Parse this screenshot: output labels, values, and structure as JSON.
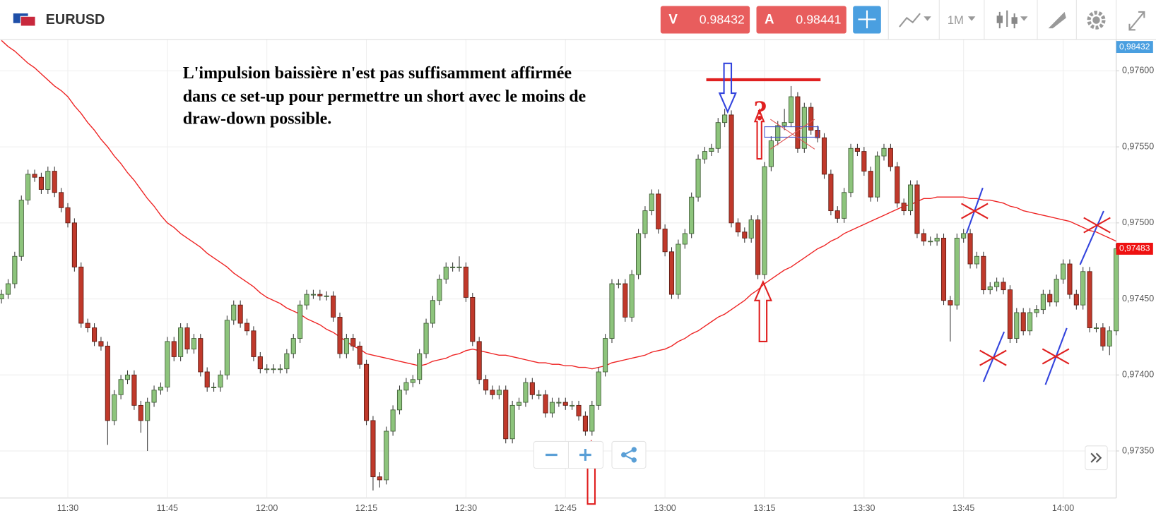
{
  "header": {
    "symbol": "EURUSD",
    "sell_label": "V",
    "sell_price": "0.98432",
    "buy_label": "A",
    "buy_price": "0.98441",
    "timeframe": "1M",
    "ask_tag": "0,98432"
  },
  "chart_data": {
    "type": "candlestick",
    "annotation": [
      "L'impulsion baissière n'est pas suffisamment affirmée",
      "dans ce set-up pour permettre un short avec le moins de",
      "draw-down possible."
    ],
    "question_mark": "?",
    "ylim": [
      0.9732,
      0.97621
    ],
    "yticks": [
      {
        "value": 0.9735,
        "label": "0,97350"
      },
      {
        "value": 0.974,
        "label": "0,97400"
      },
      {
        "value": 0.9745,
        "label": "0,97450"
      },
      {
        "value": 0.975,
        "label": "0,97500"
      },
      {
        "value": 0.9755,
        "label": "0,97550"
      },
      {
        "value": 0.976,
        "label": "0,97600"
      }
    ],
    "grid": true,
    "up_color": "#8dc47c",
    "down_color": "#c0392b",
    "last_price": {
      "value": 0.97483,
      "label": "0,97483"
    },
    "categories": [
      null,
      null,
      null,
      null,
      null,
      null,
      null,
      null,
      null,
      null,
      "11:30",
      null,
      null,
      null,
      null,
      null,
      null,
      null,
      null,
      null,
      null,
      null,
      null,
      null,
      null,
      "11:45",
      null,
      null,
      null,
      null,
      null,
      null,
      null,
      null,
      null,
      null,
      null,
      null,
      null,
      null,
      "12:00",
      null,
      null,
      null,
      null,
      null,
      null,
      null,
      null,
      null,
      null,
      null,
      null,
      null,
      null,
      "12:15",
      null,
      null,
      null,
      null,
      null,
      null,
      null,
      null,
      null,
      null,
      null,
      null,
      null,
      null,
      "12:30",
      null,
      null,
      null,
      null,
      null,
      null,
      null,
      null,
      null,
      null,
      null,
      null,
      null,
      null,
      "12:45",
      null,
      null,
      null,
      null,
      null,
      null,
      null,
      null,
      null,
      null,
      null,
      null,
      null,
      null,
      "13:00",
      null,
      null,
      null,
      null,
      null,
      null,
      null,
      null,
      null,
      null,
      null,
      null,
      null,
      null,
      "13:15",
      null,
      null,
      null,
      null,
      null,
      null,
      null,
      null,
      null,
      null,
      null,
      null,
      null,
      null,
      "13:30",
      null,
      null,
      null,
      null,
      null,
      null,
      null,
      null,
      null,
      null,
      null,
      null,
      null,
      null,
      "13:45",
      null,
      null,
      null,
      null,
      null,
      null,
      null,
      null,
      null,
      null,
      null,
      null,
      null,
      null,
      "14:00",
      null,
      null,
      null,
      null,
      null,
      null,
      null,
      null
    ],
    "open": [
      0.9745,
      0.97453,
      0.9746,
      0.97478,
      0.97515,
      0.97532,
      0.9753,
      0.97522,
      0.97534,
      0.9752,
      0.9751,
      0.975,
      0.97471,
      0.97434,
      0.97431,
      0.97422,
      0.97419,
      0.9737,
      0.97387,
      0.97397,
      0.974,
      0.9738,
      0.9737,
      0.97382,
      0.9739,
      0.97392,
      0.97422,
      0.97412,
      0.97431,
      0.97417,
      0.97424,
      0.97402,
      0.97392,
      0.97392,
      0.974,
      0.97436,
      0.97446,
      0.97434,
      0.97429,
      0.97412,
      0.97404,
      0.97404,
      0.97404,
      0.97404,
      0.97414,
      0.97424,
      0.97446,
      0.97453,
      0.97453,
      0.97452,
      0.97452,
      0.97438,
      0.97414,
      0.97424,
      0.97419,
      0.97407,
      0.9737,
      0.97333,
      0.97331,
      0.97363,
      0.97377,
      0.9739,
      0.97395,
      0.97397,
      0.97414,
      0.97434,
      0.97449,
      0.97463,
      0.97471,
      0.97471,
      0.97471,
      0.97451,
      0.97422,
      0.97397,
      0.9739,
      0.97387,
      0.9739,
      0.97358,
      0.9738,
      0.97382,
      0.97395,
      0.97387,
      0.97387,
      0.97375,
      0.97382,
      0.97382,
      0.9738,
      0.9738,
      0.97373,
      0.97363,
      0.9738,
      0.97402,
      0.97424,
      0.9746,
      0.9746,
      0.97438,
      0.97466,
      0.97493,
      0.97508,
      0.97519,
      0.97496,
      0.97481,
      0.97453,
      0.97486,
      0.97493,
      0.97517,
      0.97542,
      0.97547,
      0.97549,
      0.97566,
      0.97571,
      0.975,
      0.97494,
      0.9749,
      0.97502,
      0.97466,
      0.97537,
      0.97554,
      0.97564,
      0.97566,
      0.97583,
      0.97549,
      0.97576,
      0.97561,
      0.97556,
      0.97532,
      0.97508,
      0.97503,
      0.9752,
      0.97549,
      0.97547,
      0.97534,
      0.97517,
      0.97544,
      0.97549,
      0.97537,
      0.97513,
      0.97508,
      0.97525,
      0.97493,
      0.97488,
      0.97488,
      0.9749,
      0.97449,
      0.97446,
      0.9749,
      0.97493,
      0.97473,
      0.97478,
      0.97456,
      0.97458,
      0.97461,
      0.97456,
      0.97424,
      0.97441,
      0.97429,
      0.97441,
      0.97443,
      0.97453,
      0.97448,
      0.97463,
      0.97473,
      0.97453,
      0.97446,
      0.97468,
      0.97431,
      0.97431,
      0.97419,
      0.97429
    ],
    "high": [
      0.97456,
      0.97463,
      0.97481,
      0.97518,
      0.97535,
      0.97535,
      0.97533,
      0.97537,
      0.97537,
      0.97523,
      0.97513,
      0.97503,
      0.97474,
      0.97437,
      0.97434,
      0.97425,
      0.97422,
      0.9739,
      0.974,
      0.97403,
      0.97403,
      0.97383,
      0.97385,
      0.97393,
      0.97395,
      0.97425,
      0.97425,
      0.97434,
      0.97434,
      0.97427,
      0.97427,
      0.97405,
      0.97395,
      0.97403,
      0.97439,
      0.97449,
      0.97449,
      0.97437,
      0.97432,
      0.97415,
      0.97407,
      0.97407,
      0.97407,
      0.97417,
      0.97427,
      0.97449,
      0.97456,
      0.97456,
      0.97456,
      0.97455,
      0.97455,
      0.97441,
      0.97427,
      0.97427,
      0.97422,
      0.9741,
      0.97373,
      0.97336,
      0.97366,
      0.9738,
      0.97393,
      0.97398,
      0.974,
      0.97417,
      0.97437,
      0.97452,
      0.97466,
      0.97474,
      0.97474,
      0.97478,
      0.97474,
      0.97454,
      0.97425,
      0.974,
      0.97393,
      0.97393,
      0.97393,
      0.97383,
      0.97385,
      0.97398,
      0.97398,
      0.9739,
      0.9739,
      0.97385,
      0.97385,
      0.97385,
      0.97383,
      0.97383,
      0.97376,
      0.97383,
      0.97405,
      0.97427,
      0.97463,
      0.97463,
      0.97463,
      0.97469,
      0.97496,
      0.97511,
      0.97522,
      0.97522,
      0.97499,
      0.97484,
      0.97489,
      0.97496,
      0.9752,
      0.97545,
      0.9755,
      0.97552,
      0.97569,
      0.97575,
      0.97574,
      0.97503,
      0.97497,
      0.97505,
      0.97505,
      0.9754,
      0.97557,
      0.97567,
      0.97575,
      0.9759,
      0.97586,
      0.97579,
      0.97579,
      0.97564,
      0.97559,
      0.97535,
      0.97511,
      0.97523,
      0.97552,
      0.97552,
      0.9755,
      0.97537,
      0.97547,
      0.97552,
      0.97552,
      0.9754,
      0.97516,
      0.97528,
      0.97528,
      0.97496,
      0.97491,
      0.97493,
      0.97493,
      0.97452,
      0.97493,
      0.97496,
      0.97496,
      0.97481,
      0.97481,
      0.97461,
      0.97464,
      0.97464,
      0.97459,
      0.97444,
      0.97444,
      0.97444,
      0.97446,
      0.97456,
      0.97456,
      0.97466,
      0.97476,
      0.97476,
      0.97456,
      0.97471,
      0.97471,
      0.97434,
      0.97434,
      0.97432,
      0.97486
    ],
    "low": [
      0.97447,
      0.9745,
      0.97457,
      0.97475,
      0.97512,
      0.97527,
      0.97519,
      0.97519,
      0.97517,
      0.97507,
      0.97497,
      0.97468,
      0.97431,
      0.97428,
      0.97419,
      0.97416,
      0.97354,
      0.97367,
      0.97384,
      0.97394,
      0.97377,
      0.97362,
      0.9735,
      0.97379,
      0.97387,
      0.97389,
      0.97409,
      0.97409,
      0.97414,
      0.97414,
      0.97399,
      0.97389,
      0.97389,
      0.97389,
      0.97397,
      0.97433,
      0.97431,
      0.97426,
      0.97409,
      0.97401,
      0.97401,
      0.97401,
      0.97401,
      0.97401,
      0.97411,
      0.97421,
      0.97443,
      0.9745,
      0.97449,
      0.97449,
      0.97435,
      0.97411,
      0.97411,
      0.97416,
      0.97404,
      0.97367,
      0.97324,
      0.97326,
      0.97328,
      0.9736,
      0.97374,
      0.97387,
      0.97392,
      0.97394,
      0.97411,
      0.97431,
      0.97446,
      0.9746,
      0.97468,
      0.97468,
      0.97448,
      0.97419,
      0.97394,
      0.97387,
      0.97384,
      0.97384,
      0.97355,
      0.97355,
      0.97377,
      0.97379,
      0.97384,
      0.97384,
      0.97372,
      0.97372,
      0.97379,
      0.97377,
      0.97377,
      0.9737,
      0.9736,
      0.9736,
      0.97377,
      0.97399,
      0.97421,
      0.97457,
      0.97435,
      0.97435,
      0.97463,
      0.9749,
      0.97505,
      0.97493,
      0.97478,
      0.9745,
      0.9745,
      0.97483,
      0.9749,
      0.97514,
      0.97539,
      0.97544,
      0.97546,
      0.97563,
      0.97497,
      0.97491,
      0.97487,
      0.97487,
      0.97463,
      0.97463,
      0.97534,
      0.97551,
      0.97561,
      0.97563,
      0.97546,
      0.97546,
      0.97558,
      0.97553,
      0.97529,
      0.97505,
      0.975,
      0.975,
      0.97517,
      0.97544,
      0.97531,
      0.97514,
      0.97514,
      0.97541,
      0.97534,
      0.9751,
      0.97505,
      0.97505,
      0.9749,
      0.97485,
      0.97485,
      0.97485,
      0.97446,
      0.97422,
      0.97443,
      0.97487,
      0.9747,
      0.9747,
      0.97453,
      0.97453,
      0.97455,
      0.97453,
      0.97421,
      0.97421,
      0.97426,
      0.97426,
      0.97438,
      0.9744,
      0.97445,
      0.97445,
      0.9746,
      0.9745,
      0.97443,
      0.97443,
      0.97428,
      0.97428,
      0.97416,
      0.97413,
      0.97426
    ],
    "close": [
      0.97453,
      0.9746,
      0.97478,
      0.97515,
      0.97532,
      0.9753,
      0.97522,
      0.97534,
      0.9752,
      0.9751,
      0.975,
      0.97471,
      0.97434,
      0.97431,
      0.97422,
      0.97419,
      0.9737,
      0.97387,
      0.97397,
      0.974,
      0.9738,
      0.9737,
      0.97382,
      0.9739,
      0.97392,
      0.97422,
      0.97412,
      0.97431,
      0.97417,
      0.97424,
      0.97402,
      0.97392,
      0.97392,
      0.974,
      0.97436,
      0.97446,
      0.97434,
      0.97429,
      0.97412,
      0.97404,
      0.97404,
      0.97404,
      0.97404,
      0.97414,
      0.97424,
      0.97446,
      0.97453,
      0.97453,
      0.97452,
      0.97452,
      0.97438,
      0.97414,
      0.97424,
      0.97419,
      0.97407,
      0.9737,
      0.97333,
      0.97331,
      0.97363,
      0.97377,
      0.9739,
      0.97395,
      0.97397,
      0.97414,
      0.97434,
      0.97449,
      0.97463,
      0.97471,
      0.97471,
      0.97471,
      0.97451,
      0.97422,
      0.97397,
      0.9739,
      0.97387,
      0.9739,
      0.97358,
      0.9738,
      0.97382,
      0.97395,
      0.97387,
      0.97387,
      0.97375,
      0.97382,
      0.97382,
      0.9738,
      0.9738,
      0.97373,
      0.97363,
      0.9738,
      0.97402,
      0.97424,
      0.9746,
      0.9746,
      0.97438,
      0.97466,
      0.97493,
      0.97508,
      0.97519,
      0.97496,
      0.97481,
      0.97453,
      0.97486,
      0.97493,
      0.97517,
      0.97542,
      0.97547,
      0.97549,
      0.97566,
      0.97571,
      0.975,
      0.97494,
      0.9749,
      0.97502,
      0.97466,
      0.97537,
      0.97554,
      0.97564,
      0.97566,
      0.97583,
      0.97549,
      0.97576,
      0.97561,
      0.97556,
      0.97532,
      0.97508,
      0.97503,
      0.9752,
      0.97549,
      0.97547,
      0.97534,
      0.97517,
      0.97544,
      0.97549,
      0.97537,
      0.97513,
      0.97508,
      0.97525,
      0.97493,
      0.97488,
      0.97488,
      0.9749,
      0.97449,
      0.97446,
      0.9749,
      0.97493,
      0.97473,
      0.97478,
      0.97456,
      0.97458,
      0.97461,
      0.97456,
      0.97424,
      0.97441,
      0.97429,
      0.97441,
      0.97443,
      0.97453,
      0.97448,
      0.97463,
      0.97473,
      0.97453,
      0.97446,
      0.97468,
      0.97431,
      0.97431,
      0.97419,
      0.97429,
      0.97483
    ],
    "overlays": [
      {
        "type": "line",
        "color": "#ee2222",
        "values": [
          0.9762,
          0.97616,
          0.97613,
          0.97609,
          0.97605,
          0.97602,
          0.97598,
          0.97594,
          0.9759,
          0.97587,
          0.97583,
          0.97577,
          0.97572,
          0.97566,
          0.97561,
          0.97555,
          0.9755,
          0.97544,
          0.97539,
          0.97533,
          0.97528,
          0.97522,
          0.97516,
          0.97511,
          0.97505,
          0.975,
          0.97497,
          0.97493,
          0.9749,
          0.97487,
          0.97484,
          0.9748,
          0.97477,
          0.97474,
          0.97471,
          0.97467,
          0.97464,
          0.97461,
          0.97458,
          0.97454,
          0.97451,
          0.97449,
          0.97447,
          0.97444,
          0.97442,
          0.9744,
          0.97437,
          0.97435,
          0.97433,
          0.9743,
          0.97428,
          0.97425,
          0.97422,
          0.97419,
          0.97417,
          0.97414,
          0.97413,
          0.97412,
          0.97411,
          0.9741,
          0.97409,
          0.97408,
          0.97407,
          0.97406,
          0.97407,
          0.97409,
          0.9741,
          0.97411,
          0.97413,
          0.97414,
          0.97416,
          0.97417,
          0.97416,
          0.97415,
          0.97414,
          0.97413,
          0.97413,
          0.97412,
          0.97411,
          0.9741,
          0.97409,
          0.97408,
          0.97408,
          0.97407,
          0.97407,
          0.97406,
          0.97406,
          0.97405,
          0.97405,
          0.97404,
          0.97405,
          0.97406,
          0.97408,
          0.97409,
          0.9741,
          0.97411,
          0.97412,
          0.97413,
          0.97415,
          0.97416,
          0.97417,
          0.97419,
          0.97422,
          0.97424,
          0.97427,
          0.97429,
          0.97432,
          0.97435,
          0.97438,
          0.9744,
          0.97443,
          0.97446,
          0.97449,
          0.97453,
          0.97456,
          0.9746,
          0.97463,
          0.97466,
          0.97469,
          0.97471,
          0.97474,
          0.97477,
          0.9748,
          0.97483,
          0.97485,
          0.97488,
          0.9749,
          0.97493,
          0.97495,
          0.97497,
          0.97499,
          0.97501,
          0.97503,
          0.97505,
          0.97507,
          0.97509,
          0.97511,
          0.97512,
          0.97514,
          0.97516,
          0.97516,
          0.97517,
          0.97517,
          0.97517,
          0.97517,
          0.97517,
          0.97516,
          0.97516,
          0.97515,
          0.97515,
          0.97514,
          0.97513,
          0.97511,
          0.9751,
          0.97508,
          0.97507,
          0.97506,
          0.97505,
          0.97504,
          0.97503,
          0.97502,
          0.97501,
          0.97499,
          0.97497,
          0.97495,
          0.97494,
          0.97492,
          0.9749,
          0.97488
        ]
      }
    ]
  }
}
